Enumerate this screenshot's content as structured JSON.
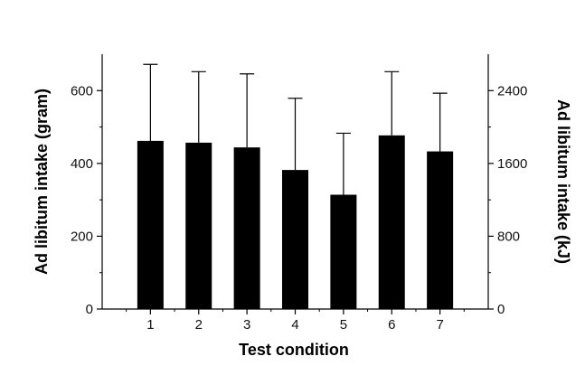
{
  "chart_data": {
    "type": "bar",
    "title": "",
    "xlabel": "Test condition",
    "ylabel": "Ad libitum intake (gram)",
    "y2label": "Ad libitum intake (kJ)",
    "categories": [
      "1",
      "2",
      "3",
      "4",
      "5",
      "6",
      "7"
    ],
    "series": [
      {
        "values": [
          462,
          457,
          444,
          382,
          314,
          477,
          433
        ],
        "error_upper": [
          672,
          652,
          646,
          579,
          483,
          652,
          593
        ]
      }
    ],
    "ylim": [
      0,
      700
    ],
    "y_ticks": [
      0,
      200,
      400,
      600
    ],
    "y2lim": [
      0,
      2800
    ],
    "y2_ticks": [
      0,
      800,
      1600,
      2400
    ],
    "grid": false,
    "colors": {
      "bar": "#000000",
      "axis": "#000000",
      "error_bar": "#000000"
    }
  }
}
